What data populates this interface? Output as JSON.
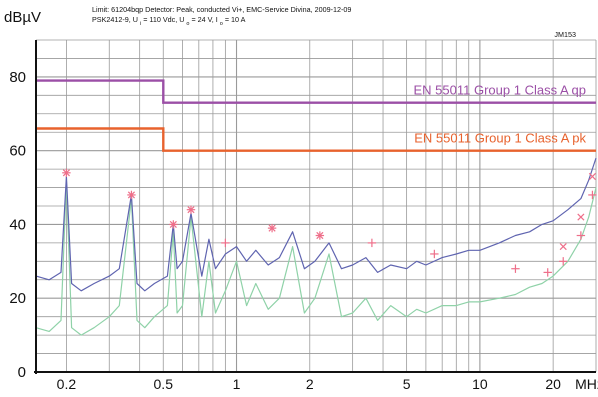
{
  "header": {
    "y_unit": "dBµV",
    "line1": "Limit: 61204bqp  Detector: Peak, conducted Vi+, EMC-Service Divina, 2009-12-09",
    "line2": "PSK2412-9, U",
    "line2_sub1": "i",
    "line2_b": " = 110 Vdc, U",
    "line2_sub2": "o",
    "line2_c": "= 24 V, I",
    "line2_sub3": "o",
    "line2_d": "= 10 A",
    "tag": "JM153"
  },
  "colors": {
    "grid": "#9a9a9a",
    "axis": "#111111",
    "qp_limit": "#9b4fa6",
    "pk_limit": "#e8622d",
    "trace_peak": "#5f64b0",
    "trace_avg": "#8fd2a8",
    "markers": "#ee6f8a"
  },
  "chart_data": {
    "type": "line",
    "x_scale": "log",
    "x_unit": "MHz",
    "xlim": [
      0.15,
      30
    ],
    "ylim": [
      0,
      90
    ],
    "ylabel": "dBµV",
    "y_ticks": [
      0,
      20,
      40,
      60,
      80
    ],
    "x_tick_labels": [
      {
        "v": 0.2,
        "t": "0.2"
      },
      {
        "v": 0.5,
        "t": "0.5"
      },
      {
        "v": 1,
        "t": "1"
      },
      {
        "v": 2,
        "t": "2"
      },
      {
        "v": 5,
        "t": "5"
      },
      {
        "v": 10,
        "t": "10"
      },
      {
        "v": 20,
        "t": "20"
      }
    ],
    "x_axis_unit_label": "MHz",
    "grid": true,
    "limits": [
      {
        "name": "EN 55011 Group 1 Class  A qp",
        "color_key": "qp_limit",
        "x": [
          0.15,
          0.5,
          0.5,
          30
        ],
        "y": [
          79,
          79,
          73,
          73
        ]
      },
      {
        "name": "EN 55011 Group 1 Class A pk",
        "color_key": "pk_limit",
        "x": [
          0.15,
          0.5,
          0.5,
          30
        ],
        "y": [
          66,
          66,
          60,
          60
        ]
      }
    ],
    "peak_trace": {
      "color_key": "trace_peak",
      "x": [
        0.15,
        0.17,
        0.19,
        0.2,
        0.21,
        0.23,
        0.26,
        0.3,
        0.33,
        0.37,
        0.39,
        0.42,
        0.46,
        0.52,
        0.55,
        0.57,
        0.6,
        0.65,
        0.72,
        0.77,
        0.82,
        0.9,
        1.0,
        1.1,
        1.2,
        1.35,
        1.5,
        1.7,
        1.9,
        2.1,
        2.4,
        2.7,
        3.0,
        3.4,
        3.8,
        4.3,
        5.0,
        5.5,
        6.0,
        7.0,
        8.0,
        9.0,
        10,
        12,
        14,
        16,
        18,
        20,
        23,
        26,
        28,
        30
      ],
      "y": [
        26,
        25,
        27,
        53,
        24,
        22,
        24,
        26,
        28,
        48,
        24,
        22,
        24,
        26,
        40,
        28,
        30,
        43,
        26,
        36,
        28,
        32,
        34,
        30,
        33,
        29,
        31,
        38,
        28,
        30,
        35,
        28,
        29,
        31,
        27,
        29,
        28,
        30,
        29,
        31,
        32,
        33,
        33,
        35,
        37,
        38,
        40,
        41,
        44,
        47,
        52,
        58
      ]
    },
    "avg_trace": {
      "color_key": "trace_avg",
      "x": [
        0.15,
        0.17,
        0.19,
        0.2,
        0.21,
        0.23,
        0.26,
        0.3,
        0.33,
        0.37,
        0.39,
        0.42,
        0.46,
        0.52,
        0.55,
        0.57,
        0.6,
        0.65,
        0.72,
        0.77,
        0.82,
        0.9,
        1.0,
        1.1,
        1.2,
        1.35,
        1.5,
        1.7,
        1.9,
        2.1,
        2.4,
        2.7,
        3.0,
        3.4,
        3.8,
        4.3,
        5.0,
        5.5,
        6.0,
        7.0,
        8.0,
        9.0,
        10,
        12,
        14,
        16,
        18,
        20,
        23,
        26,
        28,
        30
      ],
      "y": [
        12,
        11,
        14,
        52,
        12,
        10,
        12,
        15,
        18,
        47,
        14,
        12,
        15,
        18,
        38,
        16,
        18,
        42,
        15,
        30,
        16,
        22,
        30,
        18,
        24,
        17,
        20,
        34,
        16,
        20,
        32,
        15,
        16,
        20,
        14,
        18,
        15,
        17,
        16,
        18,
        18,
        19,
        19,
        20,
        21,
        23,
        24,
        26,
        30,
        36,
        42,
        50
      ]
    },
    "markers": {
      "color_key": "markers",
      "points": [
        {
          "x": 0.2,
          "y": 54,
          "m": "*"
        },
        {
          "x": 0.37,
          "y": 48,
          "m": "*"
        },
        {
          "x": 0.55,
          "y": 40,
          "m": "*"
        },
        {
          "x": 0.65,
          "y": 44,
          "m": "*"
        },
        {
          "x": 0.9,
          "y": 35,
          "m": "+"
        },
        {
          "x": 1.4,
          "y": 39,
          "m": "*"
        },
        {
          "x": 2.2,
          "y": 37,
          "m": "*"
        },
        {
          "x": 3.6,
          "y": 35,
          "m": "+"
        },
        {
          "x": 6.5,
          "y": 32,
          "m": "+"
        },
        {
          "x": 14,
          "y": 28,
          "m": "+"
        },
        {
          "x": 19,
          "y": 27,
          "m": "+"
        },
        {
          "x": 22,
          "y": 30,
          "m": "+"
        },
        {
          "x": 22,
          "y": 34,
          "m": "x"
        },
        {
          "x": 26,
          "y": 37,
          "m": "+"
        },
        {
          "x": 26,
          "y": 42,
          "m": "x"
        },
        {
          "x": 29,
          "y": 48,
          "m": "+"
        },
        {
          "x": 29,
          "y": 53,
          "m": "x"
        }
      ]
    }
  }
}
